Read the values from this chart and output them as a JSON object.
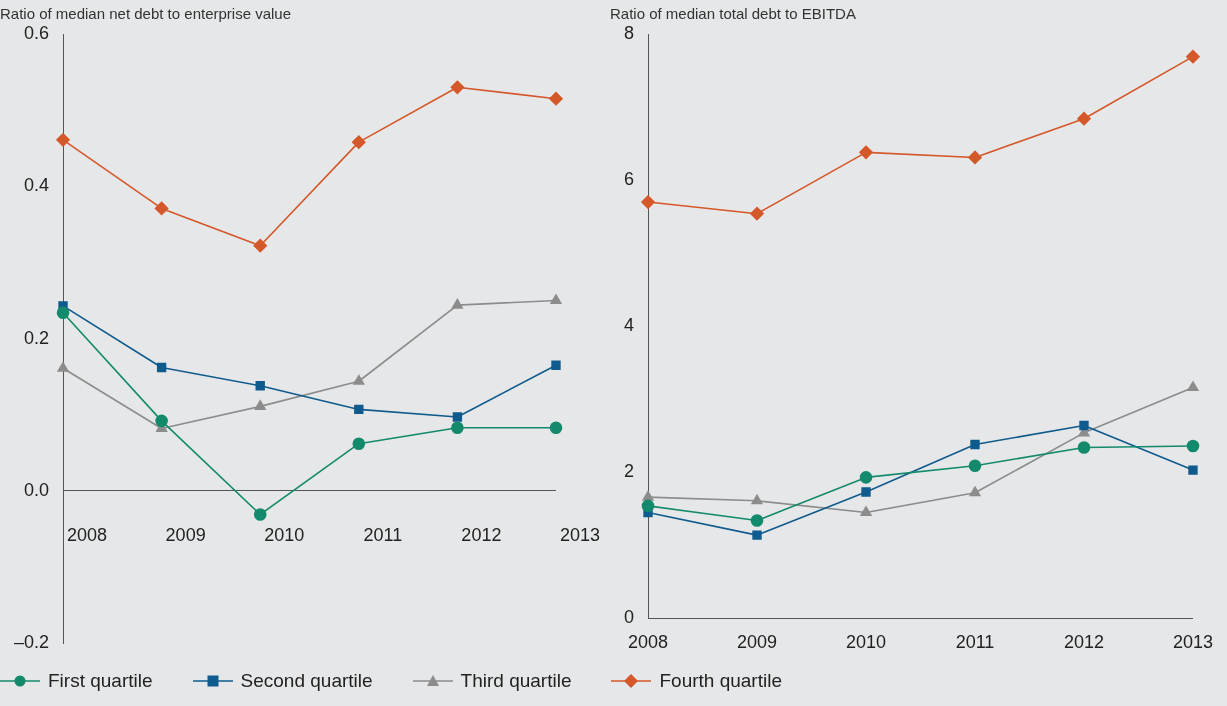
{
  "chart_data": [
    {
      "type": "line",
      "ylabel": "Ratio of median net debt to enterprise value",
      "categories": [
        "2008",
        "2009",
        "2010",
        "2011",
        "2012",
        "2013"
      ],
      "ylim": [
        -0.2,
        0.6
      ],
      "yticks": [
        {
          "value": -0.2,
          "label": "–0.2"
        },
        {
          "value": 0,
          "label": "0.0"
        },
        {
          "value": 0.2,
          "label": "0.2"
        },
        {
          "value": 0.4,
          "label": "0.4"
        },
        {
          "value": 0.6,
          "label": "0.6"
        }
      ],
      "grid": false,
      "legend": "bottom",
      "series": [
        {
          "name": "First quartile",
          "color": "#138a6c",
          "marker": "circle",
          "values": [
            0.234,
            0.092,
            -0.031,
            0.062,
            0.083,
            0.083
          ]
        },
        {
          "name": "Second quartile",
          "color": "#0f5b8d",
          "marker": "square",
          "values": [
            0.243,
            0.162,
            0.138,
            0.107,
            0.097,
            0.165
          ]
        },
        {
          "name": "Third quartile",
          "color": "#8c8c8c",
          "marker": "triangle",
          "values": [
            0.161,
            0.082,
            0.111,
            0.144,
            0.244,
            0.25
          ]
        },
        {
          "name": "Fourth quartile",
          "color": "#d4582a",
          "marker": "diamond",
          "values": [
            0.461,
            0.371,
            0.322,
            0.458,
            0.53,
            0.515
          ]
        }
      ]
    },
    {
      "type": "line",
      "ylabel": "Ratio of median total debt to EBITDA",
      "categories": [
        "2008",
        "2009",
        "2010",
        "2011",
        "2012",
        "2013"
      ],
      "ylim": [
        0,
        8
      ],
      "yticks": [
        0,
        2,
        4,
        6,
        8
      ],
      "grid": false,
      "series": [
        {
          "color": "#138a6c",
          "marker": "circle",
          "values": [
            1.54,
            1.34,
            1.93,
            2.09,
            2.34,
            2.36
          ]
        },
        {
          "color": "#0f5b8d",
          "marker": "square",
          "values": [
            1.45,
            1.14,
            1.73,
            2.38,
            2.64,
            2.03
          ]
        },
        {
          "color": "#8c8c8c",
          "marker": "triangle",
          "values": [
            1.66,
            1.61,
            1.45,
            1.72,
            2.54,
            3.16
          ]
        },
        {
          "color": "#d4582a",
          "marker": "diamond",
          "values": [
            5.7,
            5.54,
            6.38,
            6.31,
            6.84,
            7.69
          ]
        }
      ]
    }
  ]
}
